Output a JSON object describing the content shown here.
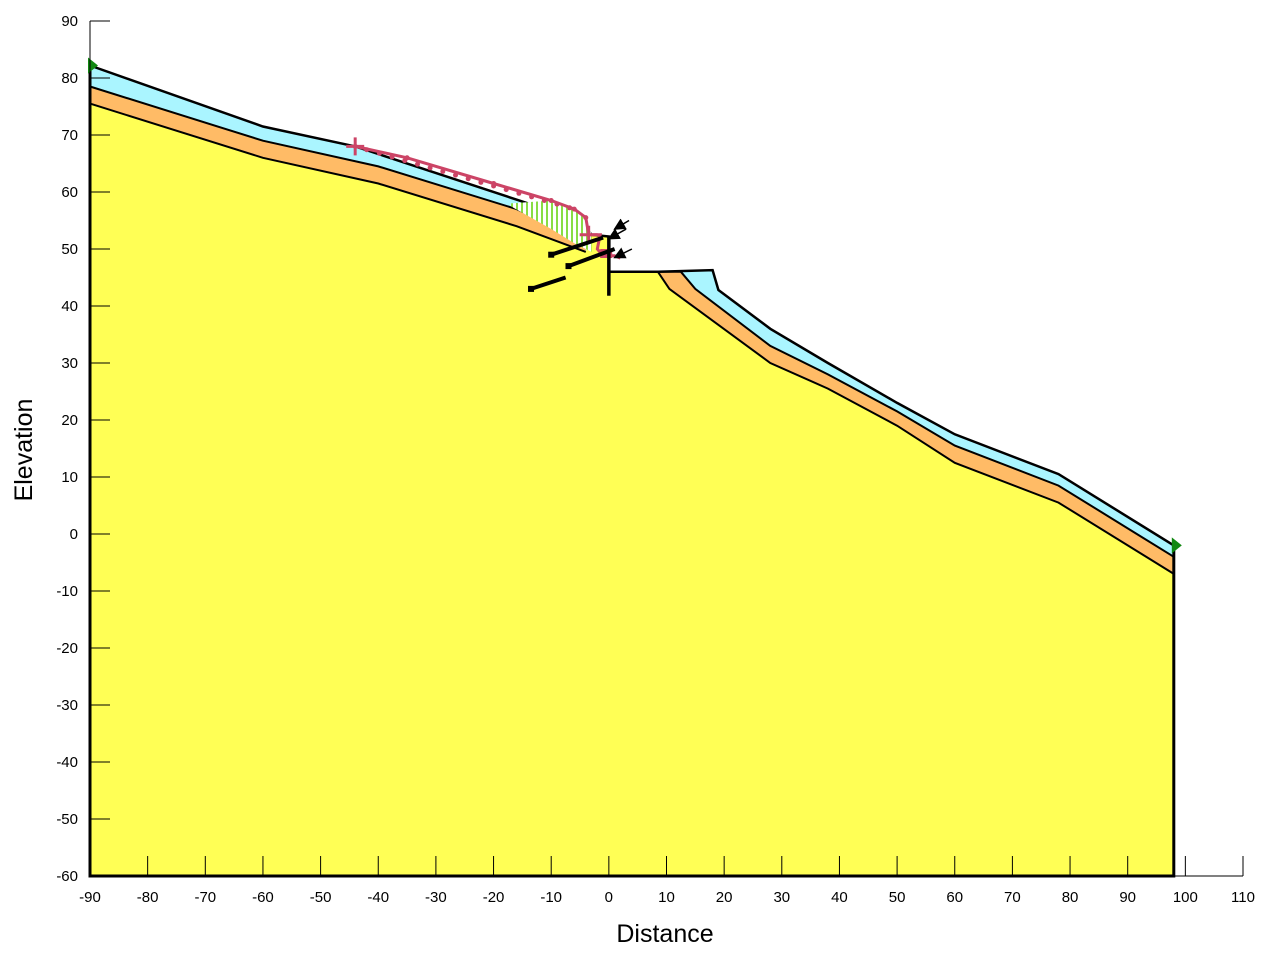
{
  "figure": {
    "xlabel": "Distance",
    "ylabel": "Elevation",
    "xaxis": {
      "min": -90,
      "max": 110,
      "ticks": [
        -90,
        -80,
        -70,
        -60,
        -50,
        -40,
        -30,
        -20,
        -10,
        0,
        10,
        20,
        30,
        40,
        50,
        60,
        70,
        80,
        90,
        100,
        110
      ]
    },
    "yaxis": {
      "min": -60,
      "max": 90,
      "ticks": [
        90,
        80,
        70,
        60,
        50,
        40,
        30,
        20,
        10,
        0,
        -10,
        -20,
        -30,
        -40,
        -50,
        -60
      ]
    }
  },
  "colors": {
    "base_soil": "#ffff55",
    "orange_layer": "#ffbb66",
    "cyan_layer": "#aaf5ff",
    "slip_surface": "#cc4466",
    "slip_mass_hatch": "#88dd44",
    "boundary_marker": "#118811",
    "outline": "#000000"
  },
  "geometry": {
    "ground_surface": [
      [
        -90,
        82.2
      ],
      [
        -60,
        71.5
      ],
      [
        -44,
        68
      ],
      [
        -5,
        55
      ],
      [
        -3,
        52.5
      ],
      [
        0,
        52.2
      ],
      [
        0,
        46
      ],
      [
        8.5,
        46
      ],
      [
        18,
        46.3
      ],
      [
        19,
        42.8
      ],
      [
        28,
        36
      ],
      [
        38,
        30
      ],
      [
        50,
        23
      ],
      [
        60,
        17.5
      ],
      [
        78,
        10.5
      ],
      [
        98,
        -2
      ]
    ],
    "left_slope_top": [
      [
        -90,
        82.2
      ],
      [
        -60,
        71.5
      ],
      [
        -44,
        68
      ],
      [
        -16,
        58
      ],
      [
        -6,
        55.5
      ]
    ],
    "orange_top_left": [
      [
        -90,
        78.5
      ],
      [
        -60,
        69
      ],
      [
        -40,
        64.5
      ],
      [
        -16,
        57
      ],
      [
        -4,
        51.5
      ]
    ],
    "base_top_left": [
      [
        -90,
        75.5
      ],
      [
        -60,
        66
      ],
      [
        -40,
        61.5
      ],
      [
        -16,
        54
      ],
      [
        -4,
        49.5
      ]
    ],
    "cyan_top_right": [
      [
        12.5,
        46.3
      ],
      [
        18,
        46.3
      ],
      [
        19,
        42.8
      ],
      [
        28,
        36
      ],
      [
        38,
        30
      ],
      [
        50,
        23
      ],
      [
        60,
        17.5
      ],
      [
        78,
        10.5
      ],
      [
        98,
        -2
      ]
    ],
    "orange_top_right": [
      [
        8.5,
        46
      ],
      [
        12.5,
        46
      ],
      [
        15,
        43
      ],
      [
        28,
        33
      ],
      [
        38,
        28
      ],
      [
        50,
        21.5
      ],
      [
        60,
        15.5
      ],
      [
        78,
        8.5
      ],
      [
        98,
        -4
      ]
    ],
    "base_top_right": [
      [
        8.5,
        46
      ],
      [
        10.5,
        43
      ],
      [
        28,
        30
      ],
      [
        38,
        25.5
      ],
      [
        50,
        19
      ],
      [
        60,
        12.5
      ],
      [
        78,
        5.5
      ],
      [
        98,
        -7
      ]
    ],
    "left_boundary_x": -90,
    "right_boundary_x": 98,
    "bottom_y": -60,
    "slip_surface": [
      [
        -44,
        68
      ],
      [
        -35,
        66
      ],
      [
        -20,
        61.5
      ],
      [
        -10,
        58.5
      ],
      [
        -6,
        57
      ],
      [
        -4,
        55.5
      ],
      [
        -3.5,
        52.5
      ],
      [
        -1.5,
        52.5
      ],
      [
        -2,
        50
      ],
      [
        -1,
        48.8
      ],
      [
        1,
        48.8
      ],
      [
        2,
        48.4
      ]
    ],
    "slip_mass": [
      [
        -17,
        58
      ],
      [
        -10,
        58.5
      ],
      [
        -6,
        57
      ],
      [
        -4,
        55.5
      ],
      [
        -3,
        52.5
      ],
      [
        -3,
        49.5
      ],
      [
        -6,
        51
      ],
      [
        -10,
        53.5
      ],
      [
        -17,
        57.5
      ]
    ],
    "wall": {
      "x": 0,
      "y_top": 52.2,
      "y_bottom": 41.8
    },
    "anchors": [
      {
        "from": [
          -10,
          49
        ],
        "to": [
          -1,
          52
        ]
      },
      {
        "from": [
          -7,
          47
        ],
        "to": [
          1,
          50
        ]
      },
      {
        "from": [
          -13.5,
          43
        ],
        "to": [
          -7.5,
          45
        ]
      }
    ],
    "load_arrows": [
      {
        "from": [
          3,
          53.5
        ],
        "to": [
          0,
          51.8
        ]
      },
      {
        "from": [
          4,
          50
        ],
        "to": [
          1,
          48.5
        ]
      },
      {
        "from": [
          3.5,
          55
        ],
        "to": [
          1,
          53.5
        ]
      }
    ],
    "boundary_markers": [
      [
        -90,
        82.2
      ],
      [
        98,
        -2
      ]
    ]
  }
}
